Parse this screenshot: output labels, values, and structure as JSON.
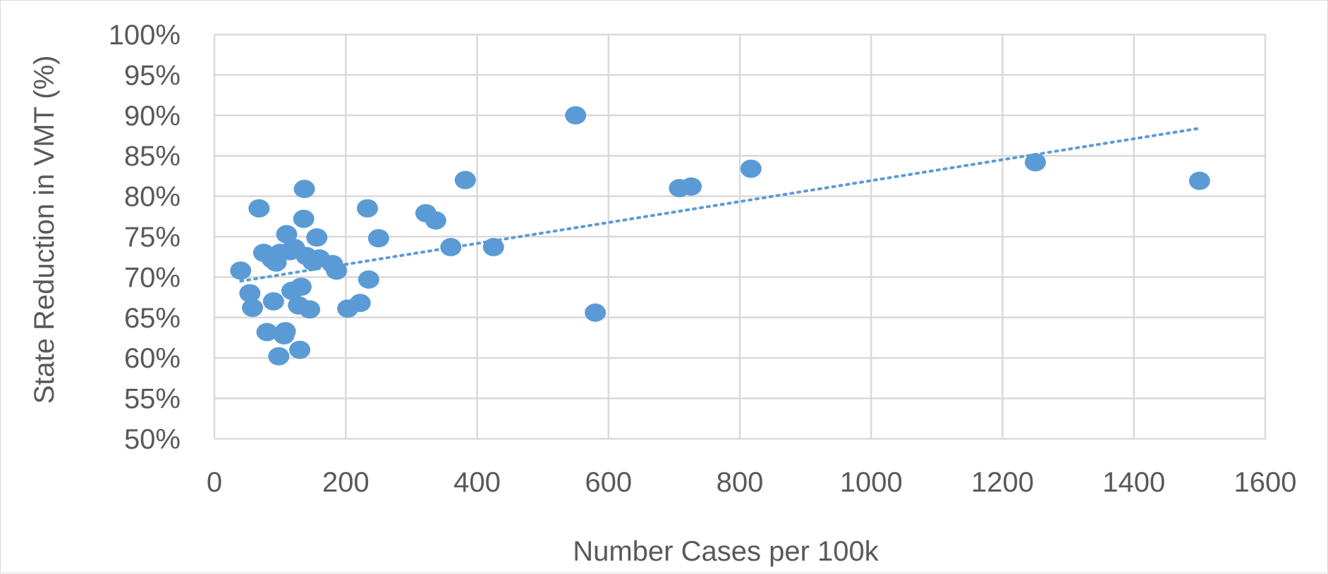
{
  "chart_data": {
    "type": "scatter",
    "title": "",
    "xlabel": "Number Cases per 100k",
    "ylabel": "State Reduction in VMT (%)",
    "xlim": [
      0,
      1600
    ],
    "ylim": [
      50,
      100
    ],
    "x_ticks": [
      "0",
      "200",
      "400",
      "600",
      "800",
      "1000",
      "1200",
      "1400",
      "1600"
    ],
    "y_ticks": [
      "50%",
      "55%",
      "60%",
      "65%",
      "70%",
      "75%",
      "80%",
      "85%",
      "90%",
      "95%",
      "100%"
    ],
    "grid": true,
    "legend": "none",
    "series": [
      {
        "marker_color": "#5B9BD5",
        "points": [
          {
            "x": 40,
            "y": 70.8
          },
          {
            "x": 54,
            "y": 68.0
          },
          {
            "x": 58,
            "y": 66.2
          },
          {
            "x": 68,
            "y": 78.5
          },
          {
            "x": 75,
            "y": 73.0
          },
          {
            "x": 80,
            "y": 63.2
          },
          {
            "x": 88,
            "y": 72.2
          },
          {
            "x": 90,
            "y": 67.0
          },
          {
            "x": 94,
            "y": 71.8
          },
          {
            "x": 98,
            "y": 60.2
          },
          {
            "x": 100,
            "y": 73.0
          },
          {
            "x": 106,
            "y": 62.8
          },
          {
            "x": 108,
            "y": 63.3
          },
          {
            "x": 110,
            "y": 75.3
          },
          {
            "x": 115,
            "y": 73.2
          },
          {
            "x": 118,
            "y": 68.3
          },
          {
            "x": 122,
            "y": 73.6
          },
          {
            "x": 128,
            "y": 66.5
          },
          {
            "x": 130,
            "y": 61.0
          },
          {
            "x": 132,
            "y": 68.8
          },
          {
            "x": 136,
            "y": 77.2
          },
          {
            "x": 137,
            "y": 80.9
          },
          {
            "x": 140,
            "y": 72.6
          },
          {
            "x": 145,
            "y": 66.0
          },
          {
            "x": 150,
            "y": 71.9
          },
          {
            "x": 156,
            "y": 74.9
          },
          {
            "x": 160,
            "y": 72.3
          },
          {
            "x": 180,
            "y": 71.6
          },
          {
            "x": 186,
            "y": 70.8
          },
          {
            "x": 203,
            "y": 66.1
          },
          {
            "x": 222,
            "y": 66.8
          },
          {
            "x": 233,
            "y": 78.5
          },
          {
            "x": 235,
            "y": 69.7
          },
          {
            "x": 250,
            "y": 74.8
          },
          {
            "x": 322,
            "y": 77.9
          },
          {
            "x": 337,
            "y": 77.0
          },
          {
            "x": 360,
            "y": 73.7
          },
          {
            "x": 382,
            "y": 82.0
          },
          {
            "x": 425,
            "y": 73.7
          },
          {
            "x": 550,
            "y": 90.0
          },
          {
            "x": 580,
            "y": 65.6
          },
          {
            "x": 708,
            "y": 81.0
          },
          {
            "x": 726,
            "y": 81.2
          },
          {
            "x": 817,
            "y": 83.4
          },
          {
            "x": 1250,
            "y": 84.2
          },
          {
            "x": 1500,
            "y": 81.9
          }
        ]
      }
    ],
    "trendline": {
      "type": "linear",
      "style": "dotted",
      "color": "#5B9BD5",
      "x": [
        40,
        1500
      ],
      "y": [
        69.5,
        88.4
      ]
    }
  }
}
